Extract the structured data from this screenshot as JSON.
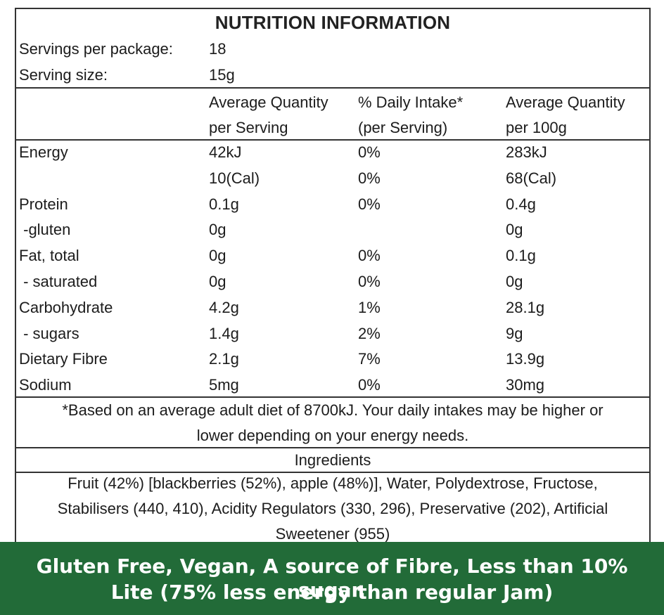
{
  "title": "NUTRITION INFORMATION",
  "servings": {
    "per_package_label": "Servings per package:",
    "per_package_value": "18",
    "size_label": "Serving size:",
    "size_value": "15g"
  },
  "headers": {
    "col2_line1": "Average Quantity",
    "col2_line2": "per Serving",
    "col3_line1": "% Daily Intake*",
    "col3_line2": "(per Serving)",
    "col4_line1": "Average Quantity",
    "col4_line2": "per 100g"
  },
  "rows": [
    {
      "name": "Energy",
      "serving": "42kJ",
      "di": "0%",
      "per100": "283kJ"
    },
    {
      "name": "",
      "serving": "10(Cal)",
      "di": "0%",
      "per100": "68(Cal)"
    },
    {
      "name": "Protein",
      "serving": "0.1g",
      "di": "0%",
      "per100": "0.4g"
    },
    {
      "name": " -gluten",
      "serving": "0g",
      "di": "",
      "per100": "0g"
    },
    {
      "name": "Fat, total",
      "serving": "0g",
      "di": "0%",
      "per100": "0.1g"
    },
    {
      "name": " - saturated",
      "serving": "0g",
      "di": "0%",
      "per100": "0g"
    },
    {
      "name": "Carbohydrate",
      "serving": "4.2g",
      "di": "1%",
      "per100": "28.1g"
    },
    {
      "name": " - sugars",
      "serving": "1.4g",
      "di": "2%",
      "per100": "9g"
    },
    {
      "name": "Dietary Fibre",
      "serving": "2.1g",
      "di": "7%",
      "per100": "13.9g"
    },
    {
      "name": "Sodium",
      "serving": "5mg",
      "di": "0%",
      "per100": "30mg"
    }
  ],
  "footnote": {
    "line1": "*Based on an average adult diet of 8700kJ. Your daily intakes may be higher or",
    "line2": "lower depending on your energy needs."
  },
  "ingredients": {
    "heading": "Ingredients",
    "line1": "Fruit (42%) [blackberries (52%), apple (48%)], Water, Polydextrose, Fructose,",
    "line2": "Stabilisers (440, 410), Acidity Regulators (330, 296), Preservative (202), Artificial",
    "line3": "Sweetener (955)"
  },
  "banner": {
    "line1": "Gluten Free, Vegan, A source of Fibre, Less than 10% sugar.",
    "line2": "Lite (75% less energy than regular Jam)"
  },
  "colors": {
    "banner_bg": "#226b38",
    "border": "#333333"
  }
}
